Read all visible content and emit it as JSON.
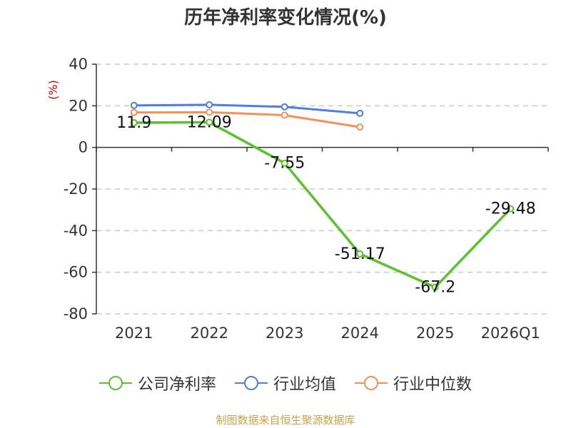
{
  "colors": {
    "net_margin": "#5bc12f",
    "industry_avg": "#4d7fdb",
    "industry_median": "#f5905b",
    "axis": "#333333",
    "grid": "#c8c8c8",
    "ylabel": "#d40000",
    "source": "#c8a24a"
  },
  "chart_data": {
    "type": "line",
    "title": "历年净利率变化情况(%)",
    "ylabel": "(%)",
    "xlabel": "",
    "categories": [
      "2021",
      "2022",
      "2023",
      "2024",
      "2025",
      "2026Q1"
    ],
    "ylim": [
      -80,
      40
    ],
    "yticks": [
      40,
      20,
      0,
      -20,
      -40,
      -60,
      -80
    ],
    "grid": true,
    "legend_position": "bottom",
    "series": [
      {
        "name": "公司净利率",
        "color_key": "net_margin",
        "values": [
          11.9,
          12.09,
          -7.55,
          -51.17,
          -67.2,
          -29.48
        ],
        "labels": [
          "11.9",
          "12.09",
          "-7.55",
          "-51.17",
          "-67.2",
          "-29.48"
        ]
      },
      {
        "name": "行业均值",
        "color_key": "industry_avg",
        "values": [
          20.2,
          20.5,
          19.5,
          16.4,
          null,
          null
        ]
      },
      {
        "name": "行业中位数",
        "color_key": "industry_median",
        "values": [
          16.8,
          16.9,
          15.5,
          9.8,
          null,
          null
        ]
      }
    ]
  },
  "legend": {
    "net_margin": "公司净利率",
    "industry_avg": "行业均值",
    "industry_median": "行业中位数"
  },
  "footer": {
    "source": "制图数据来自恒生聚源数据库"
  }
}
